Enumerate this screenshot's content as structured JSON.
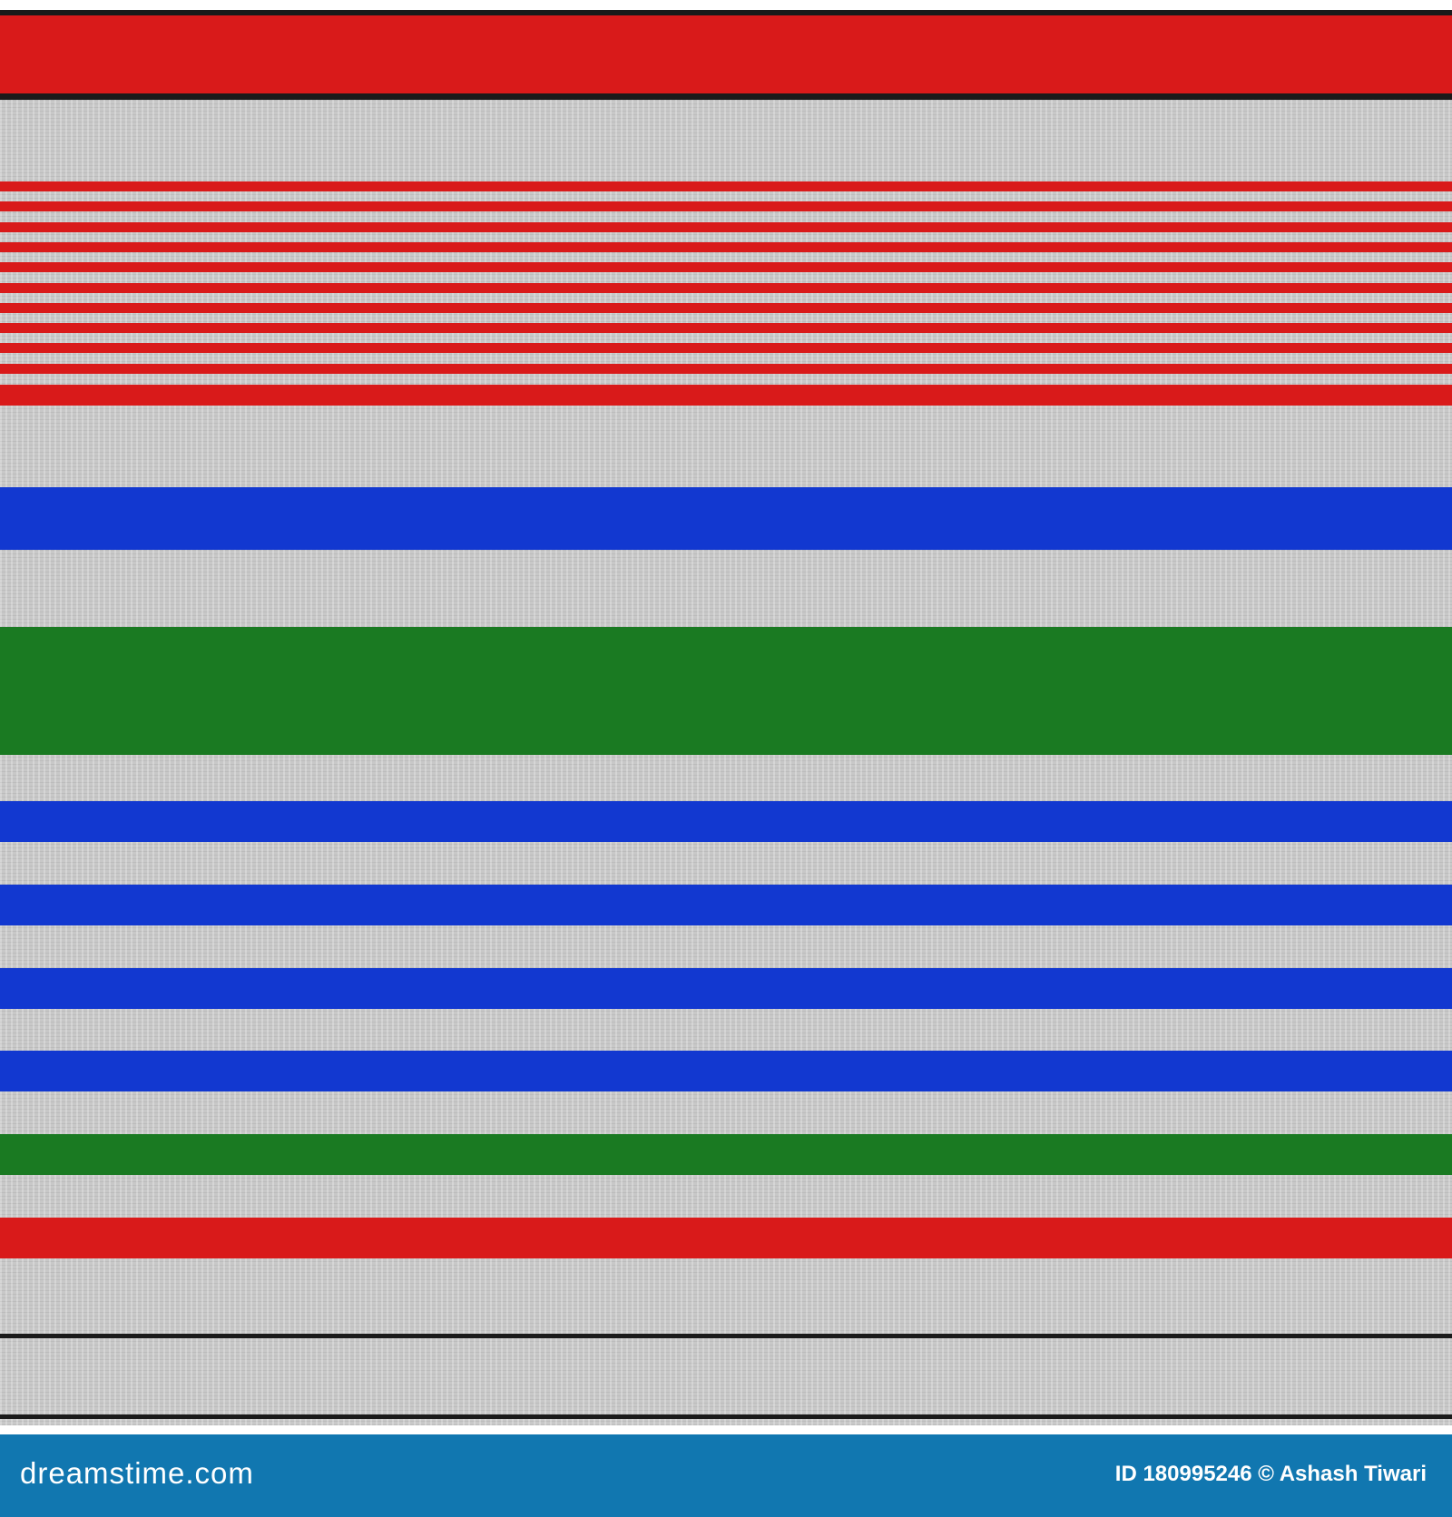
{
  "pattern": {
    "colors": {
      "red": "#d91a1a",
      "gray": "#c8c8c8",
      "blue": "#1238d0",
      "green": "#1a7a22",
      "black": "#1a1a1a"
    }
  },
  "footer": {
    "logo": "dreamstime.com",
    "credit": "ID 180995246 © Ashash Tiwari",
    "background": "#1177b0"
  }
}
